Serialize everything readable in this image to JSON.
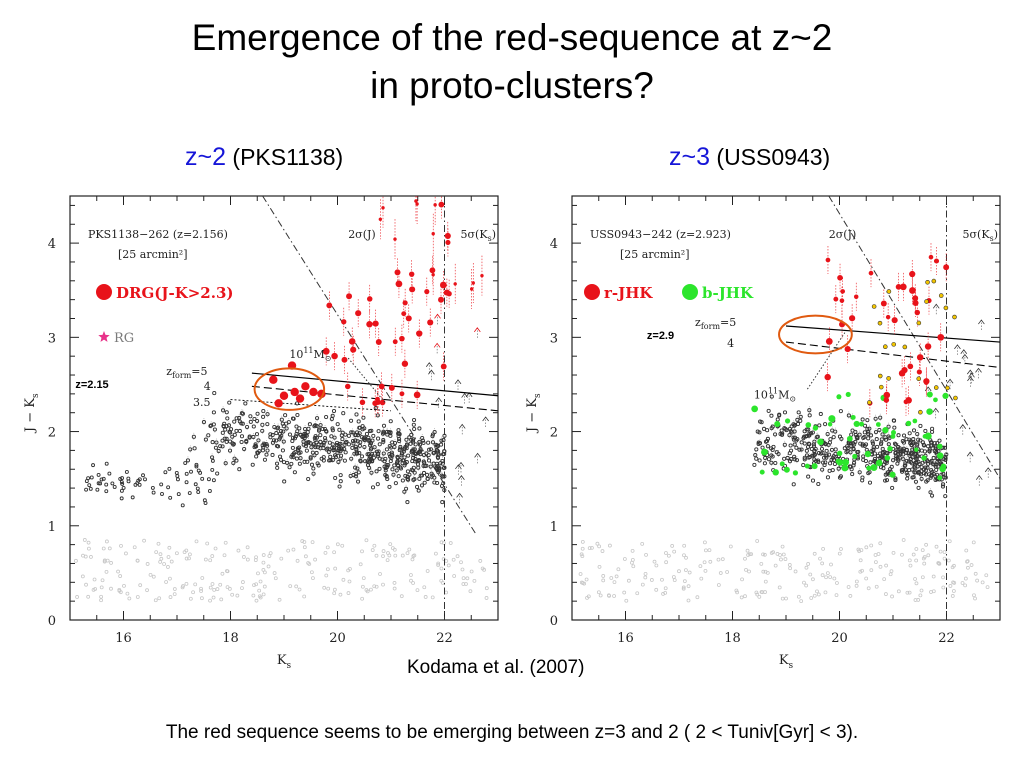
{
  "title_line1": "Emergence of the red-sequence at z~2",
  "title_line2": "in proto-clusters?",
  "left_panel": {
    "z_label": "z~2",
    "field_label": "(PKS1138)"
  },
  "right_panel": {
    "z_label": "z~3",
    "field_label": "(USS0943)"
  },
  "citation": "Kodama et al. (2007)",
  "caption": "The red sequence seems to be emerging between z=3 and 2  ( 2 < Tuniv[Gyr] < 3).",
  "colors": {
    "red_galaxy": "#e8131a",
    "green_galaxy": "#2ce52c",
    "yellow_galaxy": "#f2c500",
    "radio_galaxy": "#e8338a",
    "ellipse": "#e05a10",
    "z_label": "#1515d8"
  },
  "chart_data": [
    {
      "type": "scatter",
      "name": "PKS1138",
      "xlabel": "K",
      "xlabel_sub": "s",
      "ylabel": "J − K",
      "ylabel_sub": "s",
      "xlim": [
        15,
        23
      ],
      "ylim": [
        0,
        4.5
      ],
      "xticks": [
        16,
        18,
        20,
        22
      ],
      "yticks": [
        0,
        1,
        2,
        3,
        4
      ],
      "grid": false,
      "field_label": "PKS1138−262 (z=2.156)",
      "area_label": "[25 arcmin²]",
      "legend": [
        {
          "label": "DRG(J-K>2.3)",
          "color": "#e8131a",
          "marker": "circle"
        },
        {
          "label": "RG",
          "color": "#e8338a",
          "marker": "star"
        }
      ],
      "annotations": {
        "sigma_j": "2σ(J)",
        "sigma_ks": "5σ(K",
        "sigma_ks_sub": "s",
        "sigma_ks_close": ")",
        "mass_base": "10",
        "mass_exp": "11",
        "mass_unit": "M",
        "mass_sub": "⊙",
        "zform_base": "z",
        "zform_sub": "form",
        "zform_val": "=5",
        "zform_4": "4",
        "zform_35": "3.5",
        "z_model": "z=2.15"
      },
      "limits": {
        "sigma_j_line": [
          [
            18.6,
            4.5
          ],
          [
            22.6,
            0.9
          ]
        ],
        "ks_limit": 22.0
      },
      "sequence": {
        "zform_5": [
          [
            18.4,
            2.62
          ],
          [
            23.0,
            2.38
          ]
        ],
        "zform_4": [
          [
            18.4,
            2.48
          ],
          [
            23.0,
            2.22
          ]
        ],
        "zform_35": [
          [
            18.0,
            2.34
          ],
          [
            21.0,
            2.22
          ]
        ]
      },
      "rg_point": {
        "x": 16.4,
        "y": 3.0
      },
      "ellipse": {
        "cx": 19.1,
        "cy": 2.45,
        "rx": 0.65,
        "ry": 0.22
      }
    },
    {
      "type": "scatter",
      "name": "USS0943",
      "xlabel": "K",
      "xlabel_sub": "s",
      "ylabel": "J − K",
      "ylabel_sub": "s",
      "xlim": [
        15,
        23
      ],
      "ylim": [
        0,
        4.5
      ],
      "xticks": [
        16,
        18,
        20,
        22
      ],
      "yticks": [
        0,
        1,
        2,
        3,
        4
      ],
      "grid": false,
      "field_label": "USS0943−242 (z=2.923)",
      "area_label": "[25 arcmin²]",
      "legend": [
        {
          "label": "r-JHK",
          "color": "#e8131a",
          "marker": "circle"
        },
        {
          "label": "b-JHK",
          "color": "#2ce52c",
          "marker": "circle"
        }
      ],
      "annotations": {
        "sigma_j": "2σ(J)",
        "sigma_ks": "5σ(K",
        "sigma_ks_sub": "s",
        "sigma_ks_close": ")",
        "mass_base": "10",
        "mass_exp": "11",
        "mass_unit": "M",
        "mass_sub": "⊙",
        "zform_base": "z",
        "zform_sub": "form",
        "zform_val": "=5",
        "zform_4": "4",
        "z_model": "z=2.9"
      },
      "limits": {
        "sigma_j_line": [
          [
            19.8,
            4.5
          ],
          [
            23.0,
            1.5
          ]
        ],
        "ks_limit": 22.0
      },
      "sequence": {
        "zform_5": [
          [
            19.0,
            3.12
          ],
          [
            23.0,
            2.95
          ]
        ],
        "zform_4": [
          [
            19.0,
            2.95
          ],
          [
            23.0,
            2.68
          ]
        ]
      },
      "ellipse": {
        "cx": 19.55,
        "cy": 3.03,
        "rx": 0.68,
        "ry": 0.2
      }
    }
  ]
}
